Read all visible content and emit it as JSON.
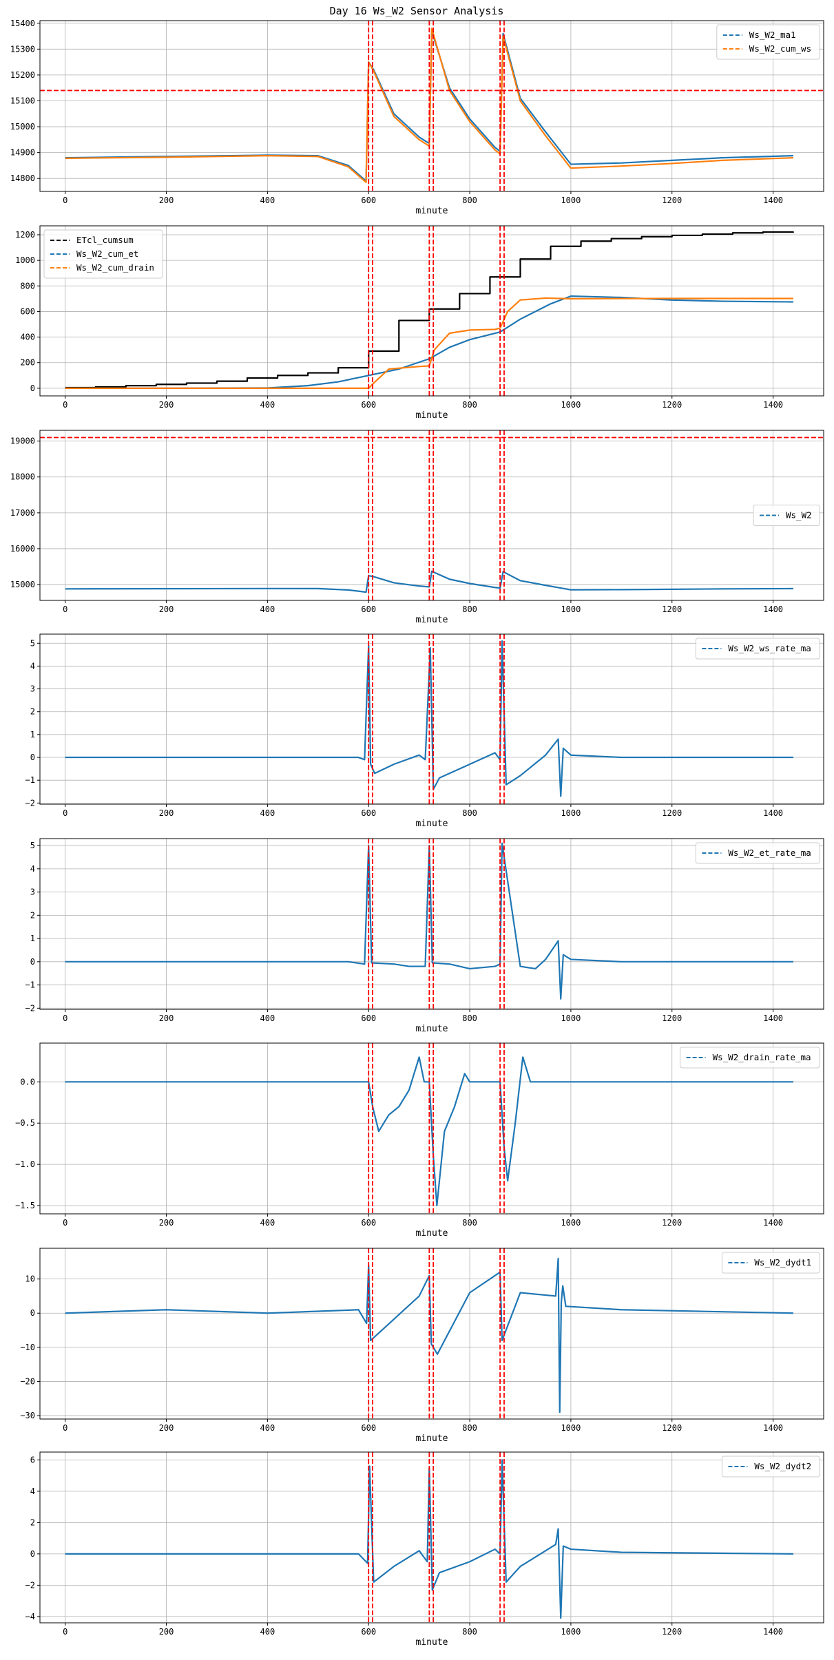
{
  "figure_title": "Day 16 Ws_W2 Sensor Analysis",
  "chart_data": [
    {
      "type": "line",
      "xlabel": "minute",
      "xlim": [
        -50,
        1500
      ],
      "xticks": [
        0,
        200,
        400,
        600,
        800,
        1000,
        1200,
        1400
      ],
      "ylim": [
        14750,
        15410
      ],
      "yticks": [
        14800,
        14900,
        15000,
        15100,
        15200,
        15300,
        15400
      ],
      "grid": true,
      "legend_position": "top-right",
      "hlines": [
        {
          "y": 15140,
          "color": "#ff0000"
        }
      ],
      "vlines": [
        600,
        608,
        720,
        728,
        860,
        868
      ],
      "series": [
        {
          "name": "Ws_W2_ma1",
          "color": "#1f77b4",
          "x": [
            0,
            200,
            400,
            500,
            560,
            595,
            600,
            610,
            650,
            700,
            720,
            725,
            760,
            800,
            850,
            860,
            866,
            900,
            950,
            980,
            1000,
            1100,
            1200,
            1300,
            1440
          ],
          "y": [
            14880,
            14885,
            14890,
            14888,
            14850,
            14790,
            15250,
            15220,
            15050,
            14960,
            14935,
            15370,
            15150,
            15030,
            14920,
            14905,
            15360,
            15110,
            14980,
            14905,
            14855,
            14860,
            14870,
            14880,
            14888
          ]
        },
        {
          "name": "Ws_W2_cum_ws",
          "color": "#ff7f0e",
          "x": [
            0,
            200,
            400,
            500,
            560,
            595,
            600,
            610,
            650,
            700,
            720,
            725,
            760,
            800,
            850,
            860,
            866,
            900,
            950,
            980,
            1000,
            1100,
            1200,
            1300,
            1440
          ],
          "y": [
            14878,
            14882,
            14888,
            14885,
            14845,
            14785,
            15250,
            15215,
            15040,
            14950,
            14925,
            15380,
            15140,
            15020,
            14910,
            14895,
            15350,
            15100,
            14965,
            14890,
            14840,
            14848,
            14858,
            14870,
            14880
          ]
        }
      ]
    },
    {
      "type": "line",
      "xlabel": "minute",
      "xlim": [
        -50,
        1500
      ],
      "xticks": [
        0,
        200,
        400,
        600,
        800,
        1000,
        1200,
        1400
      ],
      "ylim": [
        -60,
        1270
      ],
      "yticks": [
        0,
        200,
        400,
        600,
        800,
        1000,
        1200
      ],
      "grid": true,
      "legend_position": "top-left",
      "hlines": [],
      "vlines": [
        600,
        608,
        720,
        728,
        860,
        868
      ],
      "series": [
        {
          "name": "ETcl_cumsum",
          "color": "#000000",
          "step": true,
          "x": [
            0,
            60,
            120,
            180,
            240,
            300,
            360,
            420,
            480,
            540,
            600,
            660,
            720,
            780,
            840,
            900,
            960,
            1020,
            1080,
            1140,
            1200,
            1260,
            1320,
            1380,
            1440
          ],
          "y": [
            5,
            10,
            20,
            30,
            40,
            55,
            80,
            100,
            120,
            160,
            290,
            530,
            620,
            740,
            870,
            1010,
            1110,
            1150,
            1170,
            1185,
            1195,
            1205,
            1215,
            1222,
            1225
          ]
        },
        {
          "name": "Ws_W2_cum_et",
          "color": "#1f77b4",
          "x": [
            0,
            200,
            400,
            480,
            540,
            600,
            660,
            720,
            760,
            800,
            860,
            900,
            960,
            1000,
            1100,
            1200,
            1300,
            1440
          ],
          "y": [
            0,
            0,
            2,
            20,
            50,
            100,
            150,
            230,
            320,
            380,
            440,
            540,
            660,
            720,
            710,
            690,
            680,
            675
          ]
        },
        {
          "name": "Ws_W2_cum_drain",
          "color": "#ff7f0e",
          "x": [
            0,
            200,
            400,
            600,
            610,
            640,
            700,
            720,
            730,
            760,
            800,
            850,
            860,
            875,
            900,
            950,
            1000,
            1200,
            1440
          ],
          "y": [
            0,
            0,
            0,
            0,
            40,
            150,
            170,
            175,
            300,
            430,
            455,
            460,
            470,
            600,
            690,
            705,
            700,
            702,
            702
          ]
        }
      ]
    },
    {
      "type": "line",
      "xlabel": "minute",
      "xlim": [
        -50,
        1500
      ],
      "xticks": [
        0,
        200,
        400,
        600,
        800,
        1000,
        1200,
        1400
      ],
      "ylim": [
        14560,
        19300
      ],
      "yticks": [
        15000,
        16000,
        17000,
        18000,
        19000
      ],
      "grid": true,
      "legend_position": "center-right",
      "hlines": [
        {
          "y": 19100,
          "color": "#ff0000"
        }
      ],
      "vlines": [
        600,
        608,
        720,
        728,
        860,
        868
      ],
      "series": [
        {
          "name": "Ws_W2",
          "color": "#1f77b4",
          "x": [
            0,
            200,
            400,
            500,
            560,
            595,
            600,
            610,
            650,
            700,
            720,
            725,
            760,
            800,
            850,
            860,
            866,
            900,
            950,
            980,
            1000,
            1100,
            1200,
            1300,
            1440
          ],
          "y": [
            14880,
            14885,
            14890,
            14888,
            14850,
            14790,
            15250,
            15220,
            15050,
            14960,
            14935,
            15370,
            15150,
            15030,
            14920,
            14905,
            15360,
            15110,
            14980,
            14905,
            14855,
            14860,
            14870,
            14880,
            14888
          ]
        }
      ]
    },
    {
      "type": "line",
      "xlabel": "minute",
      "xlim": [
        -50,
        1500
      ],
      "xticks": [
        0,
        200,
        400,
        600,
        800,
        1000,
        1200,
        1400
      ],
      "ylim": [
        -2.05,
        5.4
      ],
      "yticks": [
        -2,
        -1,
        0,
        1,
        2,
        3,
        4,
        5
      ],
      "grid": true,
      "legend_position": "top-right",
      "hlines": [],
      "vlines": [
        600,
        608,
        720,
        728,
        860,
        868
      ],
      "series": [
        {
          "name": "Ws_W2_ws_rate_ma",
          "color": "#1f77b4",
          "x": [
            0,
            580,
            592,
            600,
            604,
            612,
            650,
            700,
            712,
            722,
            728,
            740,
            800,
            850,
            860,
            864,
            872,
            900,
            950,
            975,
            980,
            985,
            1000,
            1100,
            1440
          ],
          "y": [
            0,
            0,
            -0.1,
            4.9,
            -0.3,
            -0.7,
            -0.3,
            0.1,
            -0.1,
            4.8,
            -1.4,
            -0.9,
            -0.3,
            0.2,
            -0.1,
            5.1,
            -1.2,
            -0.8,
            0.1,
            0.8,
            -1.7,
            0.4,
            0.1,
            0,
            0
          ]
        }
      ]
    },
    {
      "type": "line",
      "xlabel": "minute",
      "xlim": [
        -50,
        1500
      ],
      "xticks": [
        0,
        200,
        400,
        600,
        800,
        1000,
        1200,
        1400
      ],
      "ylim": [
        -2.05,
        5.3
      ],
      "yticks": [
        -2,
        -1,
        0,
        1,
        2,
        3,
        4,
        5
      ],
      "grid": true,
      "legend_position": "top-right",
      "hlines": [],
      "vlines": [
        600,
        608,
        720,
        728,
        860,
        868
      ],
      "series": [
        {
          "name": "Ws_W2_et_rate_ma",
          "color": "#1f77b4",
          "x": [
            0,
            560,
            592,
            600,
            606,
            650,
            680,
            712,
            720,
            726,
            760,
            800,
            850,
            860,
            864,
            900,
            930,
            950,
            975,
            980,
            985,
            1000,
            1100,
            1440
          ],
          "y": [
            0,
            0,
            -0.1,
            5.0,
            -0.05,
            -0.1,
            -0.2,
            -0.2,
            5.0,
            -0.05,
            -0.1,
            -0.3,
            -0.2,
            -0.1,
            5.1,
            -0.2,
            -0.3,
            0.1,
            0.9,
            -1.6,
            0.3,
            0.1,
            0,
            0
          ]
        }
      ]
    },
    {
      "type": "line",
      "xlabel": "minute",
      "xlim": [
        -50,
        1500
      ],
      "xticks": [
        0,
        200,
        400,
        600,
        800,
        1000,
        1200,
        1400
      ],
      "ylim": [
        -1.6,
        0.47
      ],
      "yticks": [
        -1.5,
        -1.0,
        -0.5,
        0.0
      ],
      "grid": true,
      "legend_position": "top-right",
      "hlines": [],
      "vlines": [
        600,
        608,
        720,
        728,
        860,
        868
      ],
      "series": [
        {
          "name": "Ws_W2_drain_rate_ma",
          "color": "#1f77b4",
          "x": [
            0,
            600,
            608,
            620,
            640,
            660,
            680,
            700,
            710,
            720,
            728,
            735,
            750,
            770,
            790,
            800,
            860,
            868,
            875,
            890,
            905,
            915,
            920,
            1000,
            1440
          ],
          "y": [
            0,
            0,
            -0.3,
            -0.6,
            -0.4,
            -0.3,
            -0.1,
            0.3,
            0,
            0,
            -0.9,
            -1.5,
            -0.6,
            -0.3,
            0.1,
            0,
            0,
            -0.8,
            -1.2,
            -0.5,
            0.3,
            0.1,
            0,
            0,
            0
          ]
        }
      ]
    },
    {
      "type": "line",
      "xlabel": "minute",
      "xlim": [
        -50,
        1500
      ],
      "xticks": [
        0,
        200,
        400,
        600,
        800,
        1000,
        1200,
        1400
      ],
      "ylim": [
        -31,
        19
      ],
      "yticks": [
        -30,
        -20,
        -10,
        0,
        10
      ],
      "grid": true,
      "legend_position": "top-right",
      "hlines": [],
      "vlines": [
        600,
        608,
        720,
        728,
        860,
        868
      ],
      "series": [
        {
          "name": "Ws_W2_dydt1",
          "color": "#1f77b4",
          "x": [
            0,
            200,
            400,
            580,
            596,
            600,
            604,
            700,
            720,
            724,
            736,
            800,
            860,
            864,
            900,
            970,
            975,
            978,
            981,
            984,
            990,
            1100,
            1440
          ],
          "y": [
            0,
            1,
            0,
            1,
            -3,
            14,
            -8,
            5,
            11,
            -9,
            -12,
            6,
            12,
            -8,
            6,
            5,
            16,
            -29,
            3,
            8,
            2,
            1,
            0
          ]
        }
      ]
    },
    {
      "type": "line",
      "xlabel": "minute",
      "xlim": [
        -50,
        1500
      ],
      "xticks": [
        0,
        200,
        400,
        600,
        800,
        1000,
        1200,
        1400
      ],
      "ylim": [
        -4.4,
        6.5
      ],
      "yticks": [
        -4,
        -2,
        0,
        2,
        4,
        6
      ],
      "grid": true,
      "legend_position": "top-right",
      "hlines": [],
      "vlines": [
        600,
        608,
        720,
        728,
        860,
        868
      ],
      "series": [
        {
          "name": "Ws_W2_dydt2",
          "color": "#1f77b4",
          "x": [
            0,
            580,
            598,
            602,
            610,
            650,
            700,
            716,
            720,
            726,
            740,
            800,
            850,
            860,
            864,
            872,
            900,
            970,
            975,
            980,
            985,
            1000,
            1100,
            1440
          ],
          "y": [
            0,
            0,
            -0.6,
            5.6,
            -1.8,
            -0.8,
            0.2,
            -0.5,
            5.5,
            -2.3,
            -1.2,
            -0.5,
            0.3,
            0,
            6.0,
            -1.8,
            -0.8,
            0.6,
            1.6,
            -4.1,
            0.5,
            0.3,
            0.1,
            0
          ]
        }
      ]
    }
  ]
}
